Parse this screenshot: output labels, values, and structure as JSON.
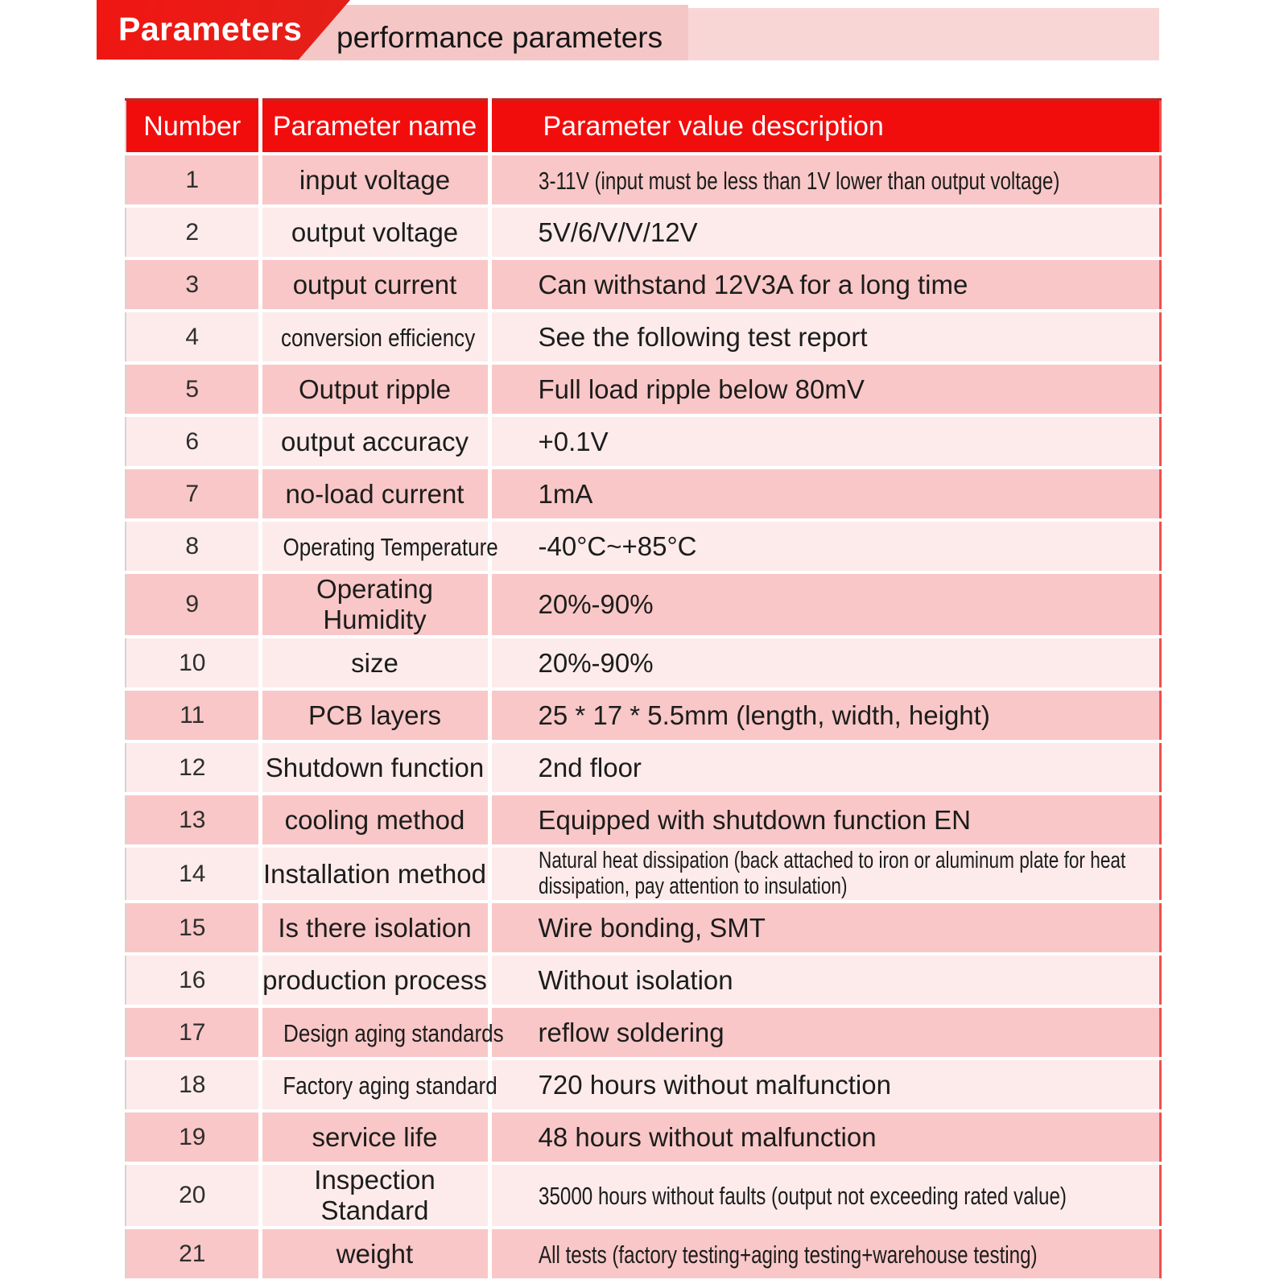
{
  "banner": {
    "tag": "Parameters",
    "subtitle": "performance parameters"
  },
  "table": {
    "headers": [
      "Number",
      "Parameter name",
      "Parameter value description"
    ],
    "rows": [
      {
        "number": "1",
        "name": "input voltage",
        "value": "3-11V (input must be less than 1V lower than output voltage)"
      },
      {
        "number": "2",
        "name": "output voltage",
        "value": "5V/6/V/V/12V"
      },
      {
        "number": "3",
        "name": "output current",
        "value": "Can withstand 12V3A for a long time"
      },
      {
        "number": "4",
        "name": "conversion efficiency",
        "value": "See the following test report"
      },
      {
        "number": "5",
        "name": "Output ripple",
        "value": "Full load ripple below 80mV"
      },
      {
        "number": "6",
        "name": "output accuracy",
        "value": "+0.1V"
      },
      {
        "number": "7",
        "name": "no-load current",
        "value": "1mA"
      },
      {
        "number": "8",
        "name": "Operating Temperature",
        "value": "-40°C~+85°C"
      },
      {
        "number": "9",
        "name": "Operating Humidity",
        "value": "20%-90%"
      },
      {
        "number": "10",
        "name": "size",
        "value": "20%-90%"
      },
      {
        "number": "11",
        "name": "PCB layers",
        "value": "25 * 17 * 5.5mm (length, width, height)"
      },
      {
        "number": "12",
        "name": "Shutdown function",
        "value": "2nd floor"
      },
      {
        "number": "13",
        "name": "cooling method",
        "value": "Equipped with shutdown function EN"
      },
      {
        "number": "14",
        "name": "Installation method",
        "value": "Natural heat dissipation (back attached to iron or aluminum plate for heat dissipation, pay attention to insulation)"
      },
      {
        "number": "15",
        "name": "Is there isolation",
        "value": "Wire bonding, SMT"
      },
      {
        "number": "16",
        "name": "production process",
        "value": "Without isolation"
      },
      {
        "number": "17",
        "name": "Design aging standards",
        "value": "reflow soldering"
      },
      {
        "number": "18",
        "name": "Factory aging standard",
        "value": "720 hours without malfunction"
      },
      {
        "number": "19",
        "name": "service life",
        "value": "48 hours without malfunction"
      },
      {
        "number": "20",
        "name": "Inspection Standard",
        "value": "35000 hours without faults (output not exceeding rated value)"
      },
      {
        "number": "21",
        "name": "weight",
        "value": "All tests (factory testing+aging testing+warehouse testing)"
      }
    ]
  },
  "colors": {
    "accent_red": "#f20d0d",
    "banner_red": "#ea1d17",
    "banner_pink": "#f9d6d6",
    "banner_pink_dark": "#f5c6c6",
    "row_dark_pink": "#f9c7c7",
    "row_light_pink": "#fdebeb",
    "text": "#1c1c1c"
  }
}
